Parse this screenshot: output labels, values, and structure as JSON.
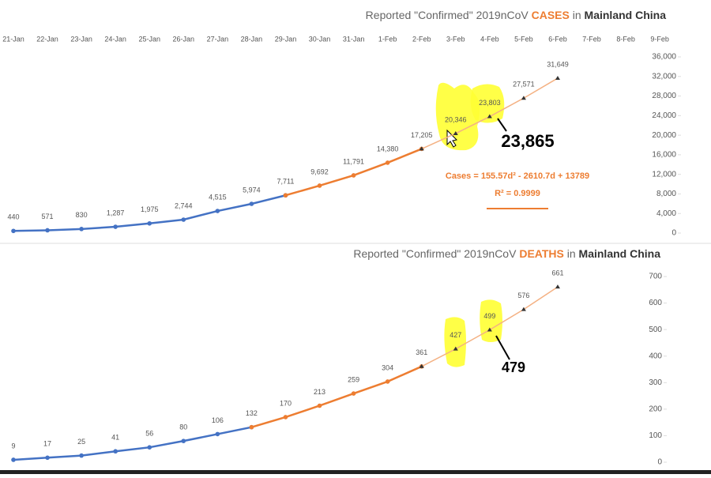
{
  "chart_data": [
    {
      "type": "line",
      "title": [
        "Reported \"Confirmed\" 2019nCoV ",
        "CASES",
        " in ",
        "Mainland China"
      ],
      "categories": [
        "21-Jan",
        "22-Jan",
        "23-Jan",
        "24-Jan",
        "25-Jan",
        "26-Jan",
        "27-Jan",
        "28-Jan",
        "29-Jan",
        "30-Jan",
        "31-Jan",
        "1-Feb",
        "2-Feb",
        "3-Feb",
        "4-Feb",
        "5-Feb",
        "6-Feb",
        "7-Feb",
        "8-Feb",
        "9-Feb"
      ],
      "series": [
        {
          "color": "#4472c4",
          "marker": "circle",
          "values": [
            440,
            571,
            830,
            1287,
            1975,
            2744,
            4515,
            5974,
            7711,
            null,
            null,
            null,
            null,
            null,
            null,
            null,
            null,
            null,
            null,
            null
          ],
          "value_labels": [
            "440",
            "571",
            "830",
            "1,287",
            "1,975",
            "2,744",
            "4,515",
            "5,974",
            "7,711",
            null,
            null,
            null,
            null,
            null,
            null,
            null,
            null,
            null,
            null,
            null
          ]
        },
        {
          "color": "#ed7d31",
          "marker": "circle",
          "values": [
            null,
            null,
            null,
            null,
            null,
            null,
            null,
            null,
            7711,
            9692,
            11791,
            14380,
            17205,
            null,
            null,
            null,
            null,
            null,
            null,
            null
          ],
          "value_labels": [
            null,
            null,
            null,
            null,
            null,
            null,
            null,
            null,
            null,
            "9,692",
            "11,791",
            "14,380",
            "17,205",
            null,
            null,
            null,
            null,
            null,
            null,
            null
          ]
        },
        {
          "color": "#f4b183",
          "marker": "triangle",
          "values": [
            null,
            null,
            null,
            null,
            null,
            null,
            null,
            null,
            null,
            null,
            null,
            null,
            17205,
            20346,
            23803,
            27571,
            31649,
            null,
            null,
            null
          ],
          "value_labels": [
            null,
            null,
            null,
            null,
            null,
            null,
            null,
            null,
            null,
            null,
            null,
            null,
            null,
            "20,346",
            "23,803",
            "27,571",
            "31,649",
            null,
            null,
            null
          ]
        }
      ],
      "ylim": [
        0,
        36000
      ],
      "yticks": [
        0,
        {
          "value": 4000,
          "label": "4,000"
        },
        {
          "value": 8000,
          "label": "8,000"
        },
        {
          "value": 12000,
          "label": "12,000"
        },
        {
          "value": 16000,
          "label": "16,000"
        },
        {
          "value": 20000,
          "label": "20,000"
        },
        {
          "value": 24000,
          "label": "24,000"
        },
        {
          "value": 28000,
          "label": "28,000"
        },
        {
          "value": 32000,
          "label": "32,000"
        },
        {
          "value": 36000,
          "label": "36,000"
        }
      ],
      "annotations": [
        "23,865",
        "Cases = 155.57d² - 2610.7d + 13789",
        "R² = 0.9999"
      ]
    },
    {
      "type": "line",
      "title": [
        "Reported \"Confirmed\" 2019nCoV ",
        "DEATHS",
        " in ",
        "Mainland China"
      ],
      "series": [
        {
          "color": "#4472c4",
          "marker": "circle",
          "values": [
            9,
            17,
            25,
            41,
            56,
            80,
            106,
            132,
            null,
            null,
            null,
            null,
            null,
            null,
            null,
            null,
            null,
            null,
            null,
            null
          ],
          "value_labels": [
            "9",
            "17",
            "25",
            "41",
            "56",
            "80",
            "106",
            "132",
            null,
            null,
            null,
            null,
            null,
            null,
            null,
            null,
            null,
            null,
            null,
            null
          ]
        },
        {
          "color": "#ed7d31",
          "marker": "circle",
          "values": [
            null,
            null,
            null,
            null,
            null,
            null,
            null,
            132,
            170,
            213,
            259,
            304,
            361,
            null,
            null,
            null,
            null,
            null,
            null,
            null
          ],
          "value_labels": [
            null,
            null,
            null,
            null,
            null,
            null,
            null,
            null,
            "170",
            "213",
            "259",
            "304",
            "361",
            null,
            null,
            null,
            null,
            null,
            null,
            null
          ]
        },
        {
          "color": "#f4b183",
          "marker": "triangle",
          "values": [
            null,
            null,
            null,
            null,
            null,
            null,
            null,
            null,
            null,
            null,
            null,
            null,
            361,
            427,
            499,
            576,
            661,
            null,
            null,
            null
          ],
          "value_labels": [
            null,
            null,
            null,
            null,
            null,
            null,
            null,
            null,
            null,
            null,
            null,
            null,
            null,
            "427",
            "499",
            "576",
            "661",
            null,
            null,
            null
          ]
        }
      ],
      "ylim": [
        0,
        700
      ],
      "yticks": [
        0,
        100,
        200,
        300,
        400,
        500,
        600,
        700
      ],
      "annotations": [
        "479"
      ]
    }
  ]
}
